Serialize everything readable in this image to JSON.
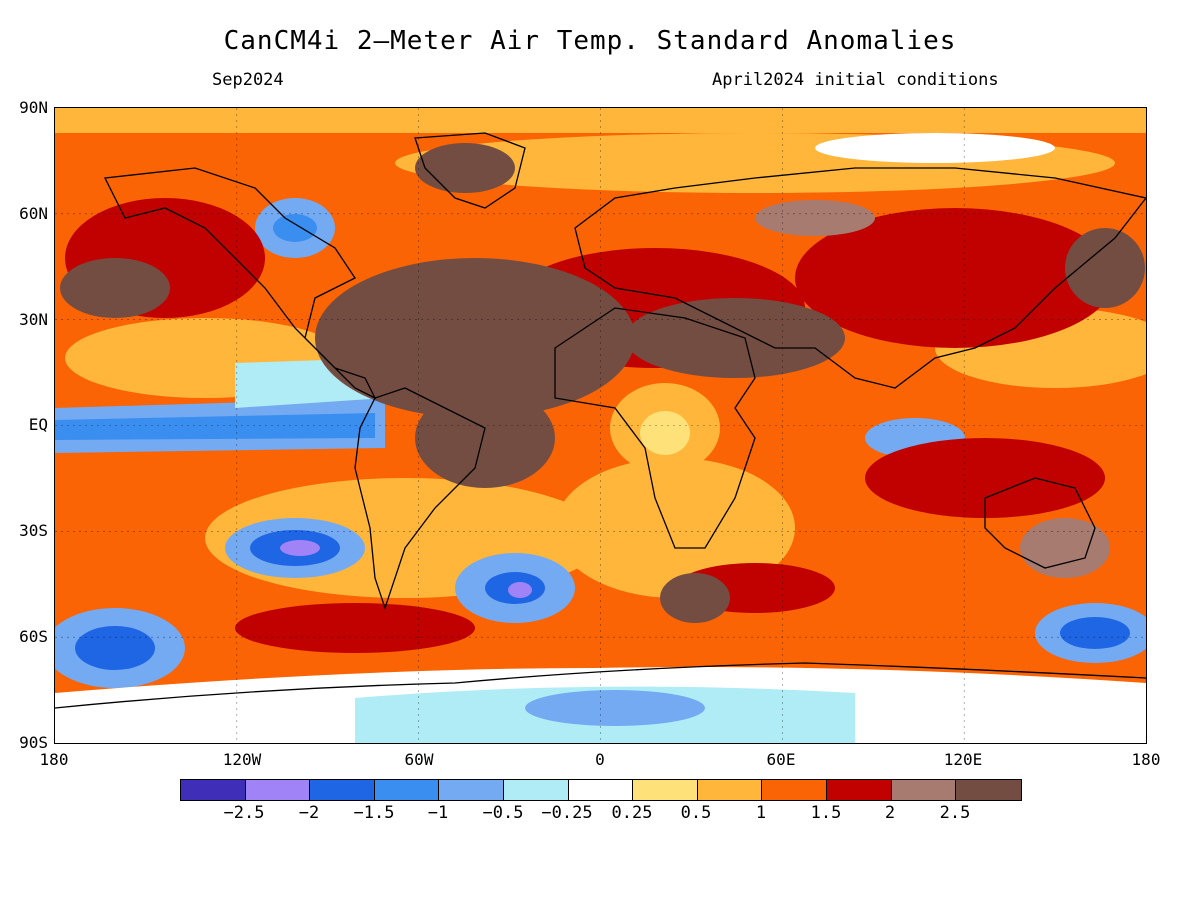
{
  "title": "CanCM4i 2—Meter Air Temp. Standard Anomalies",
  "valid_month": "Sep2024",
  "init_conditions": "April2024 initial conditions",
  "lat_labels": [
    "90N",
    "60N",
    "30N",
    "EQ",
    "30S",
    "60S",
    "90S"
  ],
  "lon_labels": [
    "180",
    "120W",
    "60W",
    "0",
    "60E",
    "120E",
    "180"
  ],
  "legend": {
    "colors": [
      "#3f2fb8",
      "#a083f6",
      "#1f66e5",
      "#3a8ef0",
      "#74aaf2",
      "#b0ecf6",
      "#ffffff",
      "#ffe17a",
      "#ffb63a",
      "#fa6404",
      "#c10000",
      "#a87b70",
      "#744d42"
    ],
    "labels": [
      "−2.5",
      "−2",
      "−1.5",
      "−1",
      "−0.5",
      "−0.25",
      "0.25",
      "0.5",
      "1",
      "1.5",
      "2",
      "2.5"
    ]
  }
}
